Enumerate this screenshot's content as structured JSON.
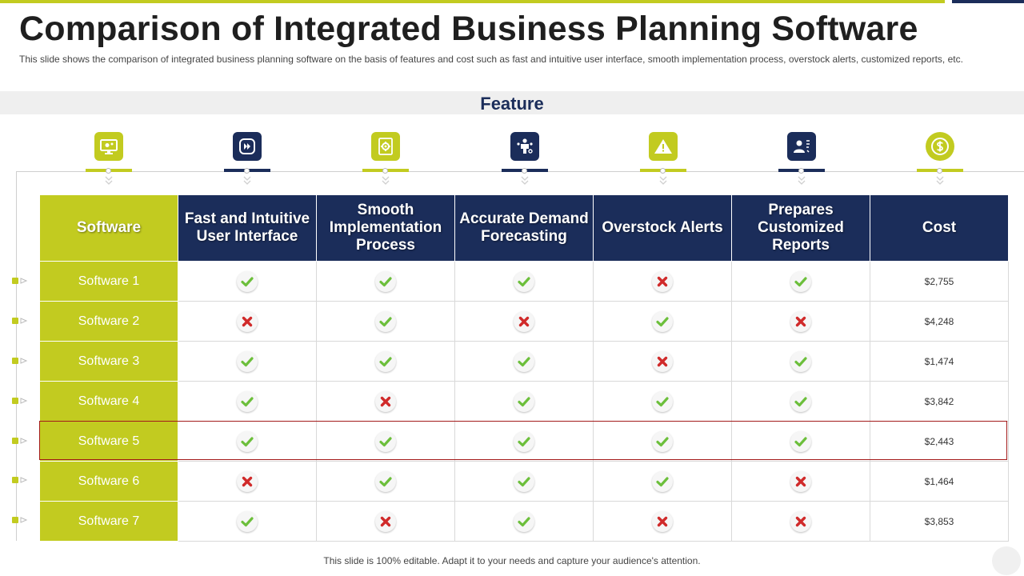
{
  "header": {
    "title": "Comparison of Integrated Business Planning Software",
    "subtitle": "This slide shows the comparison of integrated business planning software on the basis of features and cost such as fast and intuitive user interface, smooth implementation process, overstock alerts, customized reports, etc."
  },
  "feature_section": {
    "label": "Feature"
  },
  "feature_icons": [
    {
      "icon": "monitor-settings-icon",
      "color": "#c2cb20"
    },
    {
      "icon": "fast-forward-icon",
      "color": "#1b2d5a"
    },
    {
      "icon": "implementation-gear-icon",
      "color": "#c2cb20"
    },
    {
      "icon": "forecasting-person-icon",
      "color": "#1b2d5a"
    },
    {
      "icon": "warning-icon",
      "color": "#c2cb20"
    },
    {
      "icon": "report-user-icon",
      "color": "#1b2d5a"
    },
    {
      "icon": "dollar-coin-icon",
      "color": "#c2cb20"
    }
  ],
  "table": {
    "columns": [
      "Software",
      "Fast and Intuitive User Interface",
      "Smooth Implementation Process",
      "Accurate Demand Forecasting",
      "Overstock Alerts",
      "Prepares Customized Reports",
      "Cost"
    ],
    "rows": [
      {
        "name": "Software 1",
        "features": [
          true,
          true,
          true,
          false,
          true
        ],
        "cost": "$2,755"
      },
      {
        "name": "Software 2",
        "features": [
          false,
          true,
          false,
          true,
          false
        ],
        "cost": "$4,248"
      },
      {
        "name": "Software 3",
        "features": [
          true,
          true,
          true,
          false,
          true
        ],
        "cost": "$1,474"
      },
      {
        "name": "Software 4",
        "features": [
          true,
          false,
          true,
          true,
          true
        ],
        "cost": "$3,842"
      },
      {
        "name": "Software 5",
        "features": [
          true,
          true,
          true,
          true,
          true
        ],
        "cost": "$2,443"
      },
      {
        "name": "Software 6",
        "features": [
          false,
          true,
          true,
          true,
          false
        ],
        "cost": "$1,464"
      },
      {
        "name": "Software 7",
        "features": [
          true,
          false,
          true,
          false,
          false
        ],
        "cost": "$3,853"
      }
    ],
    "highlighted_row": "Software 5"
  },
  "colors": {
    "accent_green": "#c2cb20",
    "navy": "#1b2d5a",
    "check_green": "#6cbf3b",
    "cross_red": "#d02a2a",
    "highlight_border": "#a31a1a"
  },
  "footer": {
    "text": "This slide is 100% editable. Adapt it to your needs and capture your audience's attention."
  }
}
